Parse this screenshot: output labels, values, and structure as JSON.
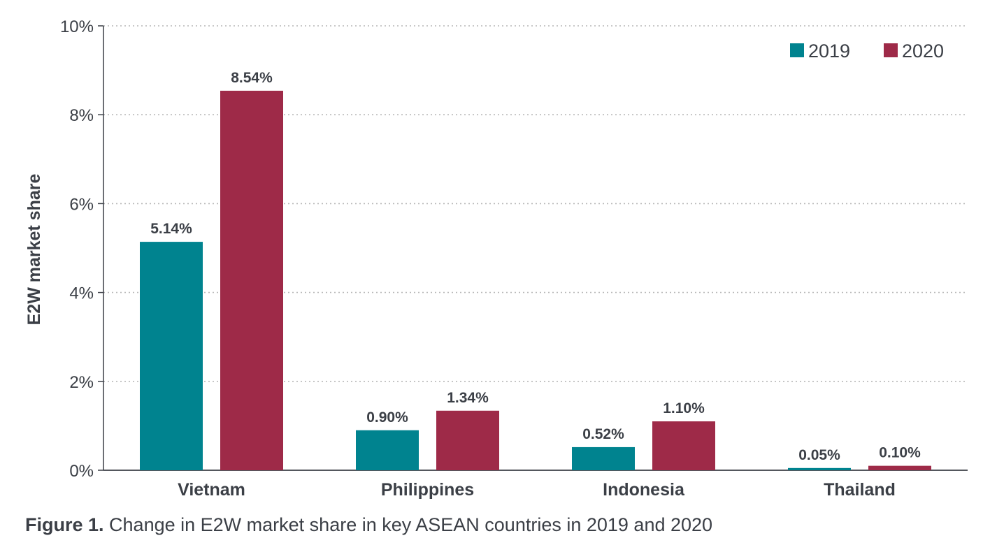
{
  "colors": {
    "series_2019": "#00838f",
    "series_2020": "#9e2a48",
    "grid": "#b7b7b7",
    "axis": "#3b3f46",
    "text": "#3b3f46"
  },
  "caption": {
    "figure": "Figure 1.",
    "text": "Change in E2W market share in key ASEAN countries in 2019 and 2020"
  },
  "chart_data": {
    "type": "bar",
    "ylabel": "E2W market share",
    "ylim": [
      0,
      10
    ],
    "yticks": [
      0,
      2,
      4,
      6,
      8,
      10
    ],
    "ytick_labels": [
      "0%",
      "2%",
      "4%",
      "6%",
      "8%",
      "10%"
    ],
    "grid": true,
    "legend_position": "top-right",
    "categories": [
      "Vietnam",
      "Philippines",
      "Indonesia",
      "Thailand"
    ],
    "series": [
      {
        "name": "2019",
        "values": [
          5.14,
          0.9,
          0.52,
          0.05
        ],
        "labels": [
          "5.14%",
          "0.90%",
          "0.52%",
          "0.05%"
        ]
      },
      {
        "name": "2020",
        "values": [
          8.54,
          1.34,
          1.1,
          0.1
        ],
        "labels": [
          "8.54%",
          "1.34%",
          "1.10%",
          "0.10%"
        ]
      }
    ]
  }
}
